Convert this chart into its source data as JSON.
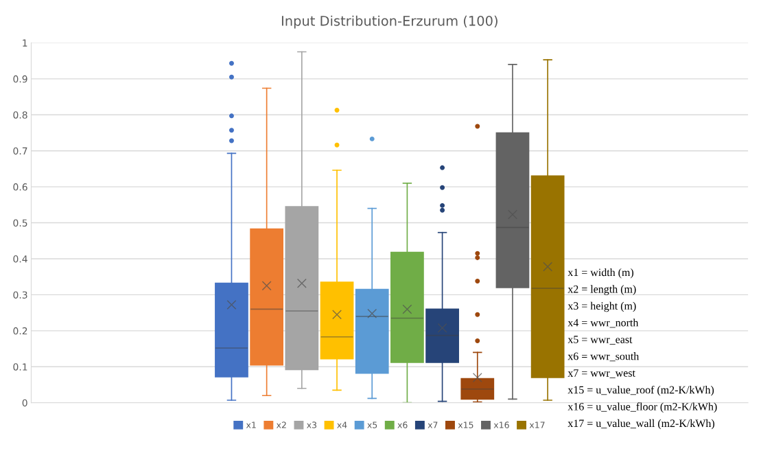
{
  "chart_data": {
    "type": "box",
    "title": "Input Distribution-Erzurum (100)",
    "categories": [
      null
    ],
    "ylim": [
      0,
      1
    ],
    "yticks": [
      0,
      0.1,
      0.2,
      0.3,
      0.4,
      0.5,
      0.6,
      0.7,
      0.8,
      0.9,
      1
    ],
    "grid": "y",
    "legend": "bottom",
    "series": [
      {
        "name": "x1",
        "color": "#4472c4",
        "boxes": [
          {
            "low": 0.007,
            "q1": 0.072,
            "median": 0.152,
            "q3": 0.332,
            "high": 0.693,
            "mean": 0.272,
            "outliers": [
              0.728,
              0.757,
              0.797,
              0.905,
              0.943
            ]
          }
        ]
      },
      {
        "name": "x2",
        "color": "#ed7d31",
        "boxes": [
          {
            "low": 0.02,
            "q1": 0.105,
            "median": 0.26,
            "q3": 0.483,
            "high": 0.874,
            "mean": 0.325
          }
        ]
      },
      {
        "name": "x3",
        "color": "#a5a5a5",
        "boxes": [
          {
            "low": 0.04,
            "q1": 0.092,
            "median": 0.255,
            "q3": 0.545,
            "high": 0.975,
            "mean": 0.332
          }
        ]
      },
      {
        "name": "x4",
        "color": "#ffc000",
        "boxes": [
          {
            "low": 0.035,
            "q1": 0.122,
            "median": 0.183,
            "q3": 0.335,
            "high": 0.646,
            "mean": 0.245,
            "outliers": [
              0.716,
              0.813
            ]
          }
        ]
      },
      {
        "name": "x5",
        "color": "#5b9bd5",
        "boxes": [
          {
            "low": 0.012,
            "q1": 0.082,
            "median": 0.24,
            "q3": 0.315,
            "high": 0.54,
            "mean": 0.248,
            "outliers": [
              0.733
            ]
          }
        ]
      },
      {
        "name": "x6",
        "color": "#70ad47",
        "boxes": [
          {
            "low": 0.0,
            "q1": 0.112,
            "median": 0.235,
            "q3": 0.418,
            "high": 0.61,
            "mean": 0.26
          }
        ]
      },
      {
        "name": "x7",
        "color": "#264478",
        "boxes": [
          {
            "low": 0.004,
            "q1": 0.112,
            "median": 0.187,
            "q3": 0.26,
            "high": 0.473,
            "mean": 0.208,
            "outliers": [
              0.535,
              0.548,
              0.598,
              0.653
            ]
          }
        ]
      },
      {
        "name": "x15",
        "color": "#9e480e",
        "boxes": [
          {
            "low": 0.002,
            "q1": 0.01,
            "median": 0.038,
            "q3": 0.067,
            "high": 0.14,
            "mean": 0.07,
            "outliers": [
              0.172,
              0.245,
              0.338,
              0.403,
              0.415,
              0.768
            ]
          }
        ]
      },
      {
        "name": "x16",
        "color": "#636363",
        "boxes": [
          {
            "low": 0.01,
            "q1": 0.32,
            "median": 0.487,
            "q3": 0.75,
            "high": 0.94,
            "mean": 0.523
          }
        ]
      },
      {
        "name": "x17",
        "color": "#997300",
        "boxes": [
          {
            "low": 0.007,
            "q1": 0.07,
            "median": 0.318,
            "q3": 0.63,
            "high": 0.953,
            "mean": 0.378
          }
        ]
      }
    ],
    "annotations": [
      "x1 = width (m)",
      "x2 = length (m)",
      "x3 = height (m)",
      "x4 = wwr_north",
      "x5 = wwr_east",
      "x6 = wwr_south",
      "x7 = wwr_west",
      "x15 = u_value_roof (m2-K/kWh)",
      "x16 = u_value_floor (m2-K/kWh)",
      "x17 = u_value_wall (m2-K/kWh)"
    ]
  }
}
